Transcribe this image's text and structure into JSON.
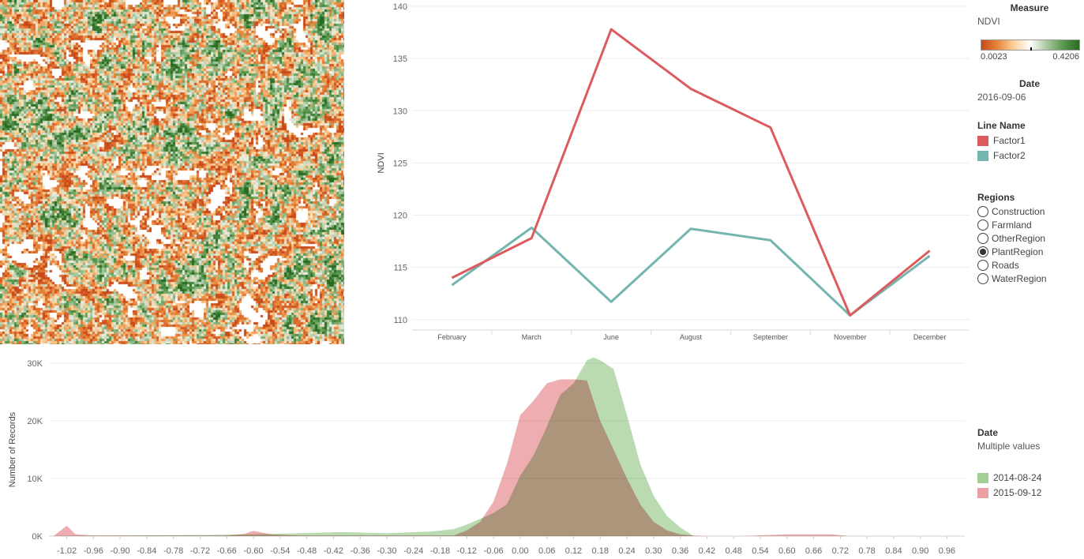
{
  "colors": {
    "factor1": "#db5b5e",
    "factor2": "#74b5b0",
    "date_2014": "#a3cf97",
    "date_2015": "#eba0a3",
    "overlap": "#a9a57a",
    "ndvi_low": "#c8491a",
    "ndvi_mid": "#ffffff",
    "ndvi_high": "#2a6a20"
  },
  "legends": {
    "measure": {
      "title": "Measure",
      "value": "NDVI",
      "min_label": "0.0023",
      "max_label": "0.4206"
    },
    "date": {
      "title": "Date",
      "value": "2016-09-06"
    },
    "line_name": {
      "title": "Line Name",
      "items": [
        "Factor1",
        "Factor2"
      ]
    },
    "regions": {
      "title": "Regions",
      "options": [
        "Construction",
        "Farmland",
        "OtherRegion",
        "PlantRegion",
        "Roads",
        "WaterRegion"
      ],
      "selected": "PlantRegion"
    },
    "date2": {
      "title": "Date",
      "value": "Multiple values",
      "items": [
        "2014-08-24",
        "2015-09-12"
      ]
    }
  },
  "chart_data": [
    {
      "type": "heatmap",
      "description_colorscale": "NDVI",
      "range": [
        0.0023,
        0.4206
      ]
    },
    {
      "type": "line",
      "categories": [
        "February",
        "March",
        "June",
        "August",
        "September",
        "November",
        "December"
      ],
      "series": [
        {
          "name": "Factor1",
          "values": [
            114.0,
            117.8,
            137.8,
            132.1,
            128.4,
            110.4,
            116.6
          ]
        },
        {
          "name": "Factor2",
          "values": [
            113.3,
            118.8,
            111.7,
            118.7,
            117.6,
            110.4,
            116.1
          ]
        }
      ],
      "ylabel": "NDVI",
      "xlabel": "",
      "ylim": [
        109,
        140
      ],
      "yticks": [
        110,
        115,
        120,
        125,
        130,
        135,
        140
      ],
      "grid": true
    },
    {
      "type": "area",
      "ylabel": "Number of Records",
      "ylim": [
        0,
        30000
      ],
      "yticks": [
        0,
        10000,
        20000,
        30000
      ],
      "ytick_labels": [
        "0K",
        "10K",
        "20K",
        "30K"
      ],
      "xticks": [
        "-1.02",
        "-0.96",
        "-0.90",
        "-0.84",
        "-0.78",
        "-0.72",
        "-0.66",
        "-0.60",
        "-0.54",
        "-0.48",
        "-0.42",
        "-0.36",
        "-0.30",
        "-0.24",
        "-0.18",
        "-0.12",
        "-0.06",
        "0.00",
        "0.06",
        "0.12",
        "0.18",
        "0.24",
        "0.30",
        "0.36",
        "0.42",
        "0.48",
        "0.54",
        "0.60",
        "0.66",
        "0.72",
        "0.78",
        "0.84",
        "0.90",
        "0.96"
      ],
      "series": [
        {
          "name": "2015-09-12",
          "x": [
            -1.05,
            -1.02,
            -1.0,
            -0.96,
            -0.9,
            -0.84,
            -0.78,
            -0.72,
            -0.66,
            -0.62,
            -0.6,
            -0.56,
            -0.5,
            -0.45,
            -0.4,
            -0.3,
            -0.2,
            -0.15,
            -0.12,
            -0.09,
            -0.06,
            -0.03,
            0.0,
            0.03,
            0.06,
            0.09,
            0.12,
            0.15,
            0.18,
            0.21,
            0.24,
            0.27,
            0.3,
            0.33,
            0.36,
            0.39,
            0.42,
            0.5,
            0.6,
            0.7,
            0.74,
            0.8
          ],
          "values": [
            0,
            1800,
            300,
            100,
            100,
            100,
            100,
            100,
            100,
            400,
            900,
            300,
            100,
            100,
            100,
            100,
            100,
            100,
            1000,
            2500,
            6000,
            12500,
            21000,
            23500,
            26500,
            27200,
            27200,
            27000,
            20000,
            15000,
            10000,
            5500,
            2500,
            1000,
            300,
            100,
            0,
            0,
            300,
            300,
            0,
            0
          ]
        },
        {
          "name": "2014-08-24",
          "x": [
            -1.05,
            -1.0,
            -0.9,
            -0.8,
            -0.7,
            -0.6,
            -0.5,
            -0.4,
            -0.3,
            -0.2,
            -0.15,
            -0.12,
            -0.09,
            -0.06,
            -0.03,
            0.0,
            0.03,
            0.06,
            0.09,
            0.12,
            0.15,
            0.165,
            0.18,
            0.21,
            0.24,
            0.27,
            0.3,
            0.33,
            0.36,
            0.39,
            0.42,
            0.6,
            0.8
          ],
          "values": [
            0,
            50,
            100,
            150,
            200,
            300,
            500,
            700,
            500,
            800,
            1200,
            2000,
            3000,
            4000,
            5500,
            10500,
            14000,
            19000,
            24500,
            26500,
            30500,
            31000,
            30500,
            29000,
            21000,
            12500,
            7000,
            3500,
            1500,
            0,
            0,
            0,
            0
          ]
        }
      ]
    }
  ]
}
